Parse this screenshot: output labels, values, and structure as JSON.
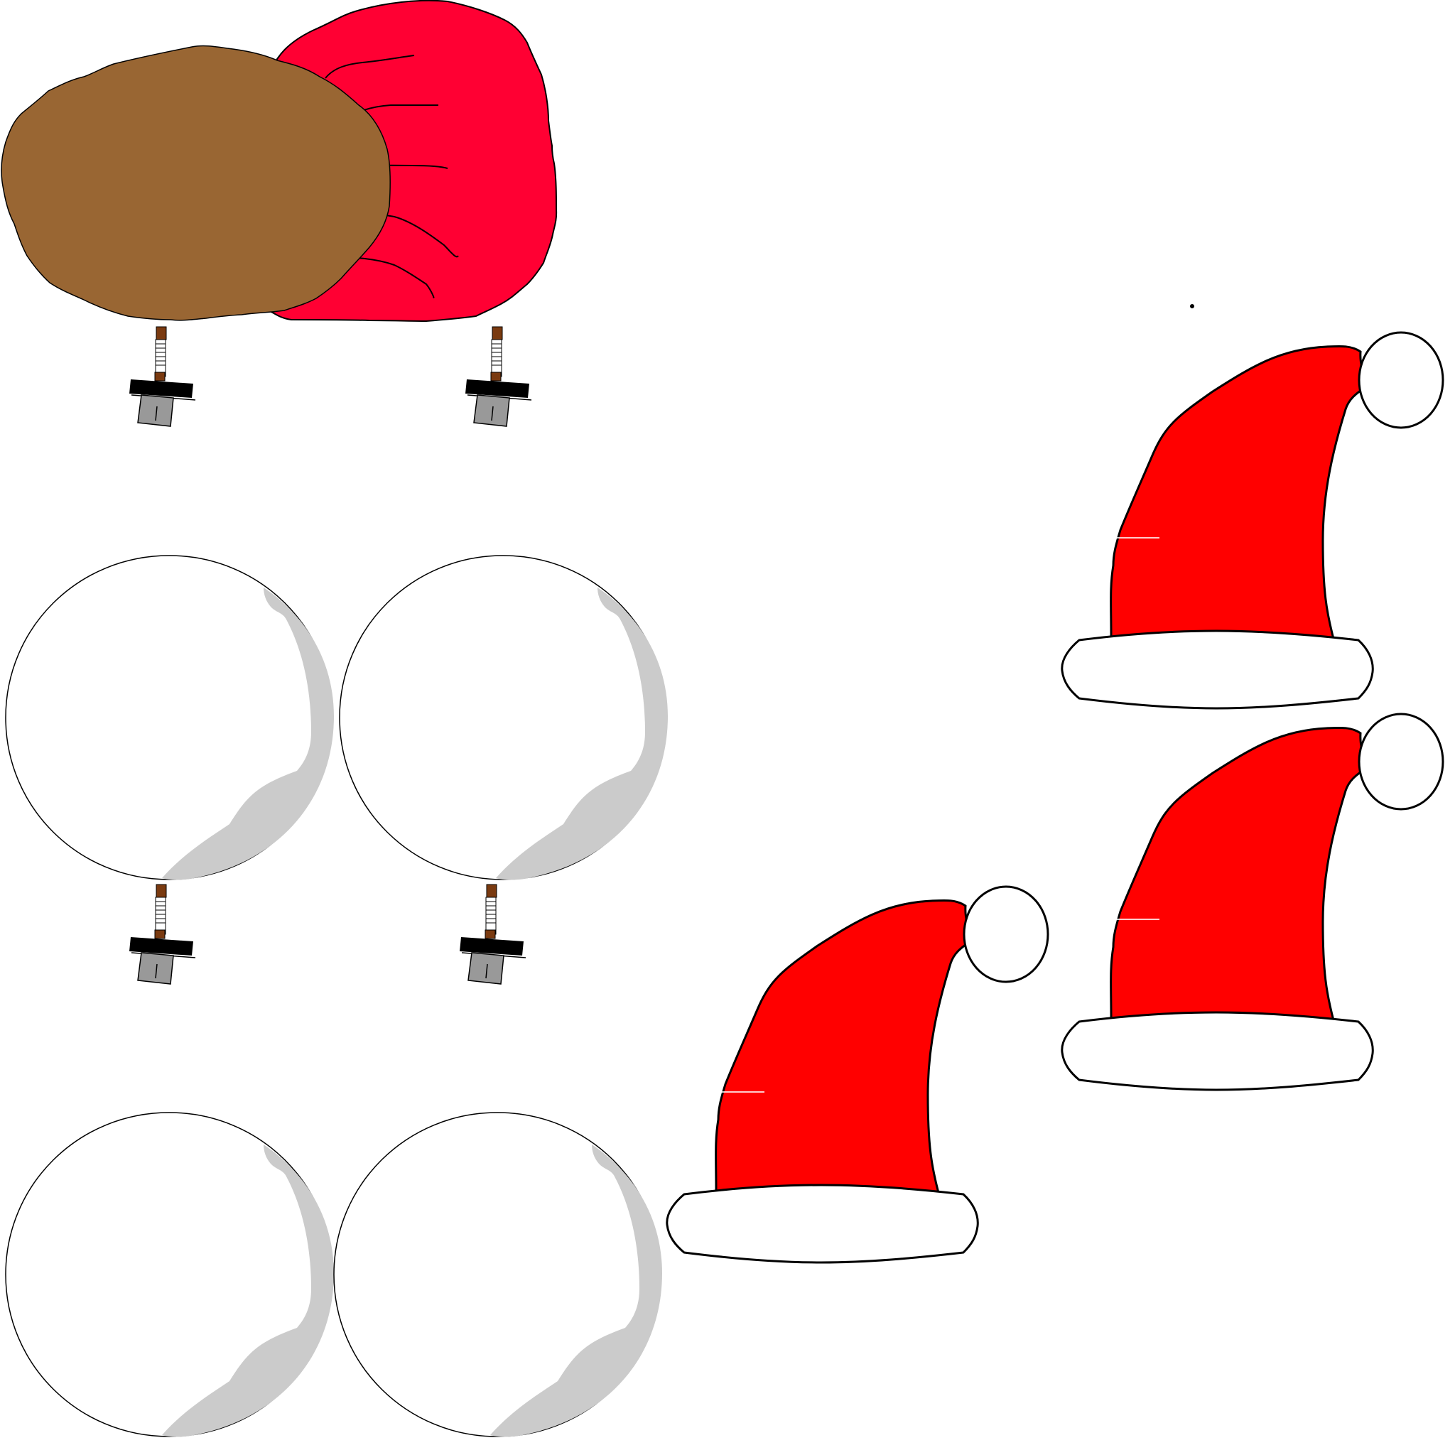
{
  "canvas": {
    "background": "#ffffff"
  },
  "colors": {
    "hat_red": "#ff0000",
    "pompom_white": "#ffffff",
    "outline": "#000000",
    "ornament_shine": "#cbcbcb",
    "mitten_pink": "#ff0033",
    "patch_brown": "#996633",
    "cap_black": "#000000",
    "cap_gray": "#999999",
    "hook_brown": "#7a3a10"
  },
  "objects": {
    "santa_hats": [
      "santa-hat-top-right",
      "santa-hat-middle-right",
      "santa-hat-bottom-center"
    ],
    "ornament_balls": [
      "ornament-ball-1",
      "ornament-ball-2",
      "ornament-ball-3",
      "ornament-ball-4"
    ],
    "ornament_caps": [
      "ornament-cap-1",
      "ornament-cap-2",
      "ornament-cap-3",
      "ornament-cap-4"
    ],
    "mitten": "pink-mitten",
    "patch": "brown-blob"
  }
}
